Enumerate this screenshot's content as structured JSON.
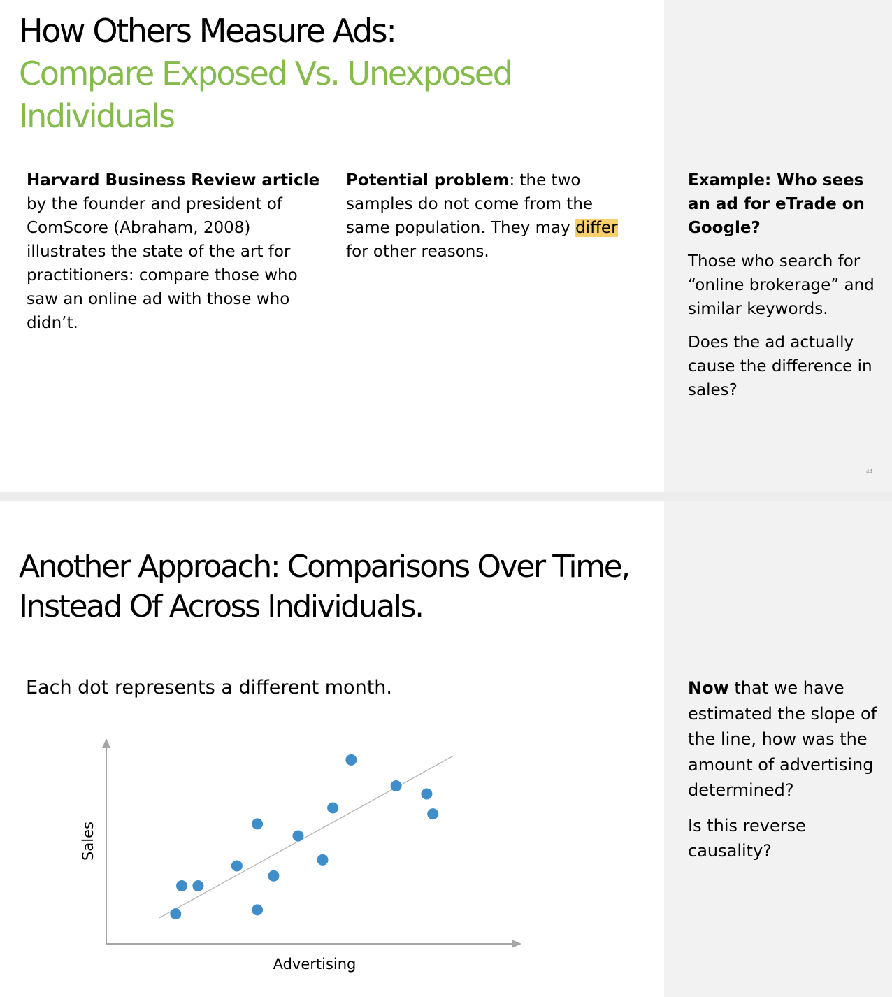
{
  "slide1": {
    "title_line1": "How Others Measure Ads:",
    "title_line2": "Compare Exposed Vs. Unexposed",
    "title_line3": "Individuals",
    "col1_bold": "Harvard Business Review article",
    "col1_text": " by the founder and president of ComScore (Abraham, 2008) illustrates the state of the art for practitioners: compare those who saw an online ad with those who didn’t.",
    "col2_bold": "Potential problem",
    "col2_text": ": the two samples do not come from the same population. They may ",
    "col2_highlight": "differ",
    "col2_tail": " for other reasons.",
    "side_heading": "Example: Who sees an ad for eTrade on Google?",
    "side_p1": "Those who search for “online brokerage” and similar keywords.",
    "side_p2": "Does the ad actually cause the difference in sales?",
    "page_number": "44"
  },
  "slide2": {
    "title_line1": "Another Approach: Comparisons Over Time,",
    "title_line2": "Instead Of Across Individuals.",
    "caption": "Each dot represents a different month.",
    "side_bold": "Now",
    "side_p1": " that we have estimated the slope of the line, how was the amount of advertising determined?",
    "side_p2": "Is this reverse causality?"
  },
  "colors": {
    "accent_green": "#84bb4c",
    "dot_blue": "#3f8ec9",
    "highlight": "#f8d06b",
    "side_panel": "#f2f2f2"
  },
  "chart_data": {
    "type": "scatter",
    "xlabel": "Advertising",
    "ylabel": "Sales",
    "xlim": [
      0,
      100
    ],
    "ylim": [
      0,
      100
    ],
    "grid": false,
    "tick_labels": false,
    "points": [
      {
        "x": 17,
        "y": 15
      },
      {
        "x": 18.5,
        "y": 29
      },
      {
        "x": 22.5,
        "y": 29
      },
      {
        "x": 32,
        "y": 39
      },
      {
        "x": 37,
        "y": 60
      },
      {
        "x": 37,
        "y": 17
      },
      {
        "x": 41,
        "y": 34
      },
      {
        "x": 47,
        "y": 54
      },
      {
        "x": 53,
        "y": 42
      },
      {
        "x": 55.5,
        "y": 68
      },
      {
        "x": 60,
        "y": 92
      },
      {
        "x": 71,
        "y": 79
      },
      {
        "x": 78.5,
        "y": 75
      },
      {
        "x": 80,
        "y": 65
      }
    ],
    "trendline": {
      "x": [
        13,
        85
      ],
      "y": [
        13,
        94
      ]
    }
  }
}
